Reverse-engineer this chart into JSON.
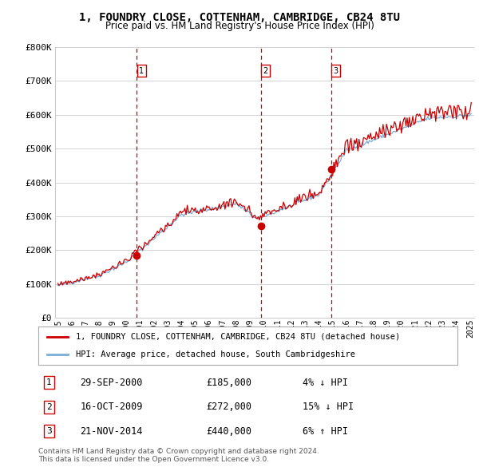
{
  "title": "1, FOUNDRY CLOSE, COTTENHAM, CAMBRIDGE, CB24 8TU",
  "subtitle": "Price paid vs. HM Land Registry's House Price Index (HPI)",
  "background_color": "#ffffff",
  "plot_bg_color": "#ffffff",
  "grid_color": "#cccccc",
  "ylim": [
    0,
    800000
  ],
  "yticks": [
    0,
    100000,
    200000,
    300000,
    400000,
    500000,
    600000,
    700000,
    800000
  ],
  "ytick_labels": [
    "£0",
    "£100K",
    "£200K",
    "£300K",
    "£400K",
    "£500K",
    "£600K",
    "£700K",
    "£800K"
  ],
  "xtick_years": [
    1995,
    1996,
    1997,
    1998,
    1999,
    2000,
    2001,
    2002,
    2003,
    2004,
    2005,
    2006,
    2007,
    2008,
    2009,
    2010,
    2011,
    2012,
    2013,
    2014,
    2015,
    2016,
    2017,
    2018,
    2019,
    2020,
    2021,
    2022,
    2023,
    2024,
    2025
  ],
  "sale_dates": [
    2000.75,
    2009.79,
    2014.9
  ],
  "sale_prices": [
    185000,
    272000,
    440000
  ],
  "sale_label_dates_str": [
    "29-SEP-2000",
    "16-OCT-2009",
    "21-NOV-2014"
  ],
  "sale_prices_str": [
    "£185,000",
    "£272,000",
    "£440,000"
  ],
  "sale_hpi_pct": [
    "4% ↓ HPI",
    "15% ↓ HPI",
    "6% ↑ HPI"
  ],
  "vline_color": "#cc0000",
  "sale_dot_color": "#cc0000",
  "hpi_line_color": "#7aaed6",
  "price_line_color": "#cc0000",
  "legend_label_price": "1, FOUNDRY CLOSE, COTTENHAM, CAMBRIDGE, CB24 8TU (detached house)",
  "legend_label_hpi": "HPI: Average price, detached house, South Cambridgeshire",
  "footer1": "Contains HM Land Registry data © Crown copyright and database right 2024.",
  "footer2": "This data is licensed under the Open Government Licence v3.0."
}
